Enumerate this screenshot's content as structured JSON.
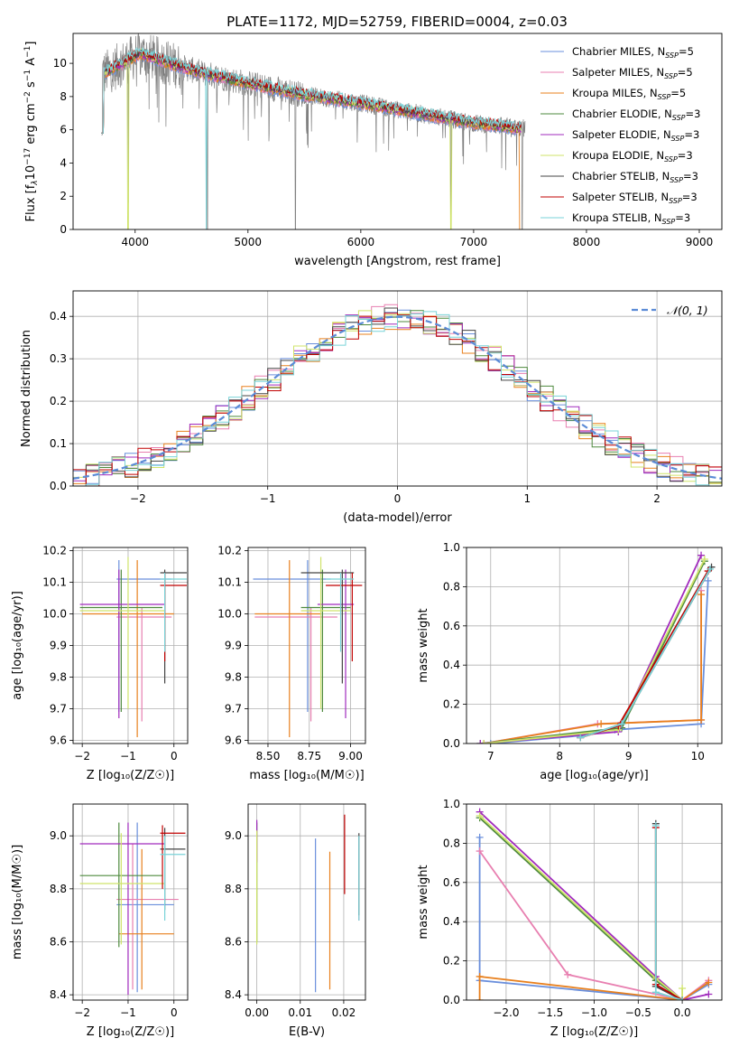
{
  "figure": {
    "title": "PLATE=1172, MJD=52759, FIBERID=0004, z=0.03"
  },
  "models": [
    {
      "label": "Chabrier MILES, N",
      "sub": "SSP",
      "tail": "=5",
      "color": "#6a8fdc"
    },
    {
      "label": "Salpeter MILES, N",
      "sub": "SSP",
      "tail": "=5",
      "color": "#e87fb0"
    },
    {
      "label": "Kroupa MILES, N",
      "sub": "SSP",
      "tail": "=5",
      "color": "#e8801e"
    },
    {
      "label": "Chabrier ELODIE, N",
      "sub": "SSP",
      "tail": "=3",
      "color": "#4e8a3e"
    },
    {
      "label": "Salpeter ELODIE, N",
      "sub": "SSP",
      "tail": "=3",
      "color": "#a12bbd"
    },
    {
      "label": "Kroupa ELODIE, N",
      "sub": "SSP",
      "tail": "=3",
      "color": "#cfe36a"
    },
    {
      "label": "Chabrier STELIB, N",
      "sub": "SSP",
      "tail": "=3",
      "color": "#444444"
    },
    {
      "label": "Salpeter STELIB, N",
      "sub": "SSP",
      "tail": "=3",
      "color": "#c00000"
    },
    {
      "label": "Kroupa STELIB, N",
      "sub": "SSP",
      "tail": "=3",
      "color": "#79d3d8"
    }
  ],
  "chart_data": [
    {
      "id": "spectrum",
      "type": "line",
      "title": "PLATE=1172, MJD=52759, FIBERID=0004, z=0.03",
      "xlabel": "wavelength [Angstrom, rest frame]",
      "ylabel_parts": [
        "Flux [f",
        "λ",
        "10",
        "−17",
        " erg cm",
        "−2",
        " s",
        "−1",
        " A",
        "−1",
        "]"
      ],
      "xlim": [
        3450,
        9200
      ],
      "ylim": [
        0,
        11.8
      ],
      "xticks": [
        "4000",
        "5000",
        "6000",
        "7000",
        "8000",
        "9000"
      ],
      "yticks": [
        "0",
        "2",
        "4",
        "6",
        "8",
        "10"
      ],
      "data_color": "#808080",
      "continuum": [
        [
          3700,
          9.3
        ],
        [
          4050,
          10.6
        ],
        [
          4300,
          10.0
        ],
        [
          4600,
          9.4
        ],
        [
          5000,
          8.8
        ],
        [
          5500,
          8.1
        ],
        [
          6000,
          7.6
        ],
        [
          6500,
          7.0
        ],
        [
          7000,
          6.4
        ],
        [
          7400,
          6.1
        ]
      ],
      "data_range": [
        3700,
        7460
      ],
      "model_range": [
        3700,
        7420
      ],
      "features": [
        {
          "x": 3940,
          "y": 1.6
        },
        {
          "x": 4640,
          "y": 0
        },
        {
          "x": 5420,
          "y": 0
        },
        {
          "x": 6800,
          "y": 0
        },
        {
          "x": 7430,
          "y": 0
        }
      ],
      "legend": "upper right"
    },
    {
      "id": "residuals",
      "type": "histogram",
      "xlabel": "(data-model)/error",
      "ylabel": "Normed distribution",
      "xlim": [
        -2.5,
        2.5
      ],
      "ylim": [
        0,
        0.46
      ],
      "xticks": [
        "−2",
        "−1",
        "0",
        "1",
        "2"
      ],
      "yticks": [
        "0.0",
        "0.1",
        "0.2",
        "0.3",
        "0.4"
      ],
      "bins": {
        "start": -2.5,
        "width": 0.1,
        "count": 50
      },
      "reference": {
        "name": "𝒩(0, 1)",
        "color": "#5b8bd6",
        "type": "dashed"
      },
      "legend": "upper right"
    },
    {
      "id": "age_vs_Z",
      "type": "errorbar",
      "xlabel": "Z [log₁₀(Z/Z☉)]",
      "ylabel": "age  [log₁₀(age/yr)]",
      "xlim": [
        -2.2,
        0.3
      ],
      "ylim": [
        9.59,
        10.21
      ],
      "xticks": [
        "−2",
        "−1",
        "0"
      ],
      "yticks": [
        "9.6",
        "9.7",
        "9.8",
        "9.9",
        "10.0",
        "10.1",
        "10.2"
      ],
      "xtick_vals": [
        -2,
        -1,
        0
      ],
      "ytick_vals": [
        9.6,
        9.7,
        9.8,
        9.9,
        10.0,
        10.1,
        10.2
      ],
      "points": [
        {
          "m": 0,
          "x": -1.2,
          "y": 10.11,
          "xe": [
            -1.25,
            -0.05
          ],
          "ye": [
            9.69,
            10.17
          ]
        },
        {
          "m": 1,
          "x": -0.7,
          "y": 9.99,
          "xe": [
            -1.25,
            -0.05
          ],
          "ye": [
            9.66,
            10.02
          ]
        },
        {
          "m": 2,
          "x": -0.8,
          "y": 10.0,
          "xe": [
            -2.0,
            0.0
          ],
          "ye": [
            9.61,
            10.17
          ]
        },
        {
          "m": 3,
          "x": -1.15,
          "y": 10.02,
          "xe": [
            -2.05,
            -0.25
          ],
          "ye": [
            9.69,
            10.14
          ]
        },
        {
          "m": 4,
          "x": -1.2,
          "y": 10.03,
          "xe": [
            -2.05,
            -0.2
          ],
          "ye": [
            9.67,
            10.14
          ]
        },
        {
          "m": 5,
          "x": -1.0,
          "y": 10.01,
          "xe": [
            -2.05,
            -0.2
          ],
          "ye": [
            9.7,
            10.18
          ]
        },
        {
          "m": 6,
          "x": -0.2,
          "y": 10.13,
          "xe": [
            -0.3,
            0.28
          ],
          "ye": [
            9.78,
            10.14
          ]
        },
        {
          "m": 7,
          "x": -0.2,
          "y": 10.09,
          "xe": [
            -0.3,
            0.28
          ],
          "ye": [
            9.85,
            10.13
          ]
        },
        {
          "m": 8,
          "x": -0.2,
          "y": 10.11,
          "xe": [
            -0.3,
            0.28
          ],
          "ye": [
            9.88,
            10.13
          ]
        }
      ]
    },
    {
      "id": "age_vs_mass",
      "type": "errorbar",
      "xlabel": "mass [log₁₀(M/M☉)]",
      "ylabel": "",
      "xlim": [
        8.38,
        9.09
      ],
      "ylim": [
        9.59,
        10.21
      ],
      "xticks": [
        "8.50",
        "8.75",
        "9.00"
      ],
      "yticks": [
        "9.6",
        "9.7",
        "9.8",
        "9.9",
        "10.0",
        "10.1",
        "10.2"
      ],
      "xtick_vals": [
        8.5,
        8.75,
        9.0
      ],
      "ytick_vals": [
        9.6,
        9.7,
        9.8,
        9.9,
        10.0,
        10.1,
        10.2
      ],
      "points": [
        {
          "m": 0,
          "x": 8.74,
          "y": 10.11,
          "xe": [
            8.41,
            8.88
          ],
          "ye": [
            9.69,
            10.17
          ]
        },
        {
          "m": 1,
          "x": 8.76,
          "y": 9.99,
          "xe": [
            8.42,
            8.92
          ],
          "ye": [
            9.66,
            10.02
          ]
        },
        {
          "m": 2,
          "x": 8.63,
          "y": 10.0,
          "xe": [
            8.42,
            8.82
          ],
          "ye": [
            9.61,
            10.17
          ]
        },
        {
          "m": 3,
          "x": 8.83,
          "y": 10.02,
          "xe": [
            8.7,
            9.0
          ],
          "ye": [
            9.69,
            10.14
          ]
        },
        {
          "m": 4,
          "x": 8.97,
          "y": 10.03,
          "xe": [
            8.8,
            9.02
          ],
          "ye": [
            9.67,
            10.14
          ]
        },
        {
          "m": 5,
          "x": 8.82,
          "y": 10.01,
          "xe": [
            8.7,
            9.0
          ],
          "ye": [
            9.7,
            10.18
          ]
        },
        {
          "m": 6,
          "x": 8.95,
          "y": 10.13,
          "xe": [
            8.7,
            9.02
          ],
          "ye": [
            9.78,
            10.14
          ]
        },
        {
          "m": 7,
          "x": 9.01,
          "y": 10.09,
          "xe": [
            8.85,
            9.07
          ],
          "ye": [
            9.85,
            10.13
          ]
        },
        {
          "m": 8,
          "x": 8.94,
          "y": 10.11,
          "xe": [
            8.85,
            9.02
          ],
          "ye": [
            9.88,
            10.13
          ]
        }
      ]
    },
    {
      "id": "weight_vs_age",
      "type": "line",
      "xlabel": "age  [log₁₀(age/yr)]",
      "ylabel": "mass weight",
      "xlim": [
        6.65,
        10.35
      ],
      "ylim": [
        0,
        1.0
      ],
      "xticks": [
        "7",
        "8",
        "9",
        "10"
      ],
      "yticks": [
        "0.0",
        "0.2",
        "0.4",
        "0.6",
        "0.8",
        "1.0"
      ],
      "xtick_vals": [
        7,
        8,
        9,
        10
      ],
      "ytick_vals": [
        0,
        0.2,
        0.4,
        0.6,
        0.8,
        1.0
      ],
      "series": [
        {
          "m": 0,
          "x": [
            7.0,
            8.3,
            8.8,
            10.05,
            10.15
          ],
          "y": [
            0.0,
            0.04,
            0.07,
            0.1,
            0.83
          ]
        },
        {
          "m": 1,
          "x": [
            6.9,
            8.55,
            10.05,
            10.05
          ],
          "y": [
            0.0,
            0.1,
            0.12,
            0.78
          ]
        },
        {
          "m": 2,
          "x": [
            6.9,
            8.6,
            10.05,
            10.05
          ],
          "y": [
            0.0,
            0.1,
            0.12,
            0.76
          ]
        },
        {
          "m": 3,
          "x": [
            6.85,
            8.9,
            10.1
          ],
          "y": [
            0.0,
            0.08,
            0.93
          ]
        },
        {
          "m": 4,
          "x": [
            6.85,
            8.85,
            10.05
          ],
          "y": [
            0.0,
            0.06,
            0.96
          ]
        },
        {
          "m": 5,
          "x": [
            6.9,
            8.85,
            10.1
          ],
          "y": [
            0.0,
            0.07,
            0.94
          ]
        },
        {
          "m": 6,
          "x": [
            8.3,
            8.9,
            10.2
          ],
          "y": [
            0.03,
            0.1,
            0.9
          ]
        },
        {
          "m": 7,
          "x": [
            8.3,
            8.85,
            10.15
          ],
          "y": [
            0.03,
            0.09,
            0.88
          ]
        },
        {
          "m": 8,
          "x": [
            8.3,
            8.9,
            10.18
          ],
          "y": [
            0.03,
            0.1,
            0.89
          ]
        }
      ]
    },
    {
      "id": "mass_vs_Z",
      "type": "errorbar",
      "xlabel": "Z [log₁₀(Z/Z☉)]",
      "ylabel": "mass [log₁₀(M/M☉)]",
      "xlim": [
        -2.2,
        0.3
      ],
      "ylim": [
        8.38,
        9.12
      ],
      "xticks": [
        "−2",
        "−1",
        "0"
      ],
      "yticks": [
        "8.4",
        "8.6",
        "8.8",
        "9.0"
      ],
      "xtick_vals": [
        -2,
        -1,
        0
      ],
      "ytick_vals": [
        8.4,
        8.6,
        8.8,
        9.0
      ],
      "points": [
        {
          "m": 0,
          "x": -0.8,
          "y": 8.74,
          "xe": [
            -1.25,
            0.0
          ],
          "ye": [
            8.41,
            9.05
          ]
        },
        {
          "m": 1,
          "x": -0.9,
          "y": 8.76,
          "xe": [
            -1.25,
            0.1
          ],
          "ye": [
            8.42,
            8.97
          ]
        },
        {
          "m": 2,
          "x": -0.7,
          "y": 8.63,
          "xe": [
            -1.2,
            0.0
          ],
          "ye": [
            8.42,
            8.95
          ]
        },
        {
          "m": 3,
          "x": -1.2,
          "y": 8.85,
          "xe": [
            -2.05,
            -0.25
          ],
          "ye": [
            8.58,
            9.05
          ]
        },
        {
          "m": 4,
          "x": -1.0,
          "y": 8.97,
          "xe": [
            -2.05,
            -0.2
          ],
          "ye": [
            8.4,
            9.05
          ]
        },
        {
          "m": 5,
          "x": -1.15,
          "y": 8.82,
          "xe": [
            -2.05,
            -0.2
          ],
          "ye": [
            8.59,
            9.01
          ]
        },
        {
          "m": 6,
          "x": -0.2,
          "y": 8.95,
          "xe": [
            -0.3,
            0.25
          ],
          "ye": [
            8.72,
            9.03
          ]
        },
        {
          "m": 7,
          "x": -0.25,
          "y": 9.01,
          "xe": [
            -0.3,
            0.25
          ],
          "ye": [
            8.8,
            9.04
          ]
        },
        {
          "m": 8,
          "x": -0.2,
          "y": 8.93,
          "xe": [
            -0.3,
            0.25
          ],
          "ye": [
            8.68,
            9.0
          ]
        }
      ]
    },
    {
      "id": "mass_vs_ebv",
      "type": "errorbar",
      "xlabel": "E(B-V)",
      "ylabel": "",
      "xlim": [
        -0.002,
        0.025
      ],
      "ylim": [
        8.38,
        9.12
      ],
      "xticks": [
        "0.00",
        "0.01",
        "0.02"
      ],
      "yticks": [
        "8.4",
        "8.6",
        "8.8",
        "9.0"
      ],
      "xtick_vals": [
        0.0,
        0.01,
        0.02
      ],
      "ytick_vals": [
        8.4,
        8.6,
        8.8,
        9.0
      ],
      "points": [
        {
          "m": 0,
          "x": 0.0135,
          "y": 8.74,
          "xe": [
            0.0135,
            0.0135
          ],
          "ye": [
            8.41,
            8.99
          ]
        },
        {
          "m": 1,
          "x": 0.0235,
          "y": 8.76,
          "xe": [
            0.0235,
            0.0235
          ],
          "ye": [
            8.68,
            9.0
          ]
        },
        {
          "m": 2,
          "x": 0.0168,
          "y": 8.63,
          "xe": [
            0.0168,
            0.0168
          ],
          "ye": [
            8.42,
            8.94
          ]
        },
        {
          "m": 3,
          "x": 0.0,
          "y": 8.85,
          "xe": [
            0.0,
            0.0
          ],
          "ye": [
            8.6,
            9.05
          ]
        },
        {
          "m": 4,
          "x": 0.0,
          "y": 8.97,
          "xe": [
            0.0,
            0.0
          ],
          "ye": [
            8.9,
            9.06
          ]
        },
        {
          "m": 5,
          "x": 0.0,
          "y": 8.82,
          "xe": [
            0.0,
            0.0
          ],
          "ye": [
            8.59,
            9.02
          ]
        },
        {
          "m": 6,
          "x": 0.0235,
          "y": 8.95,
          "xe": [
            0.0235,
            0.0235
          ],
          "ye": [
            8.7,
            9.01
          ]
        },
        {
          "m": 7,
          "x": 0.0202,
          "y": 9.0,
          "xe": [
            0.0202,
            0.0202
          ],
          "ye": [
            8.78,
            9.08
          ]
        },
        {
          "m": 8,
          "x": 0.0235,
          "y": 8.92,
          "xe": [
            0.0235,
            0.0235
          ],
          "ye": [
            8.68,
            9.0
          ]
        }
      ]
    },
    {
      "id": "weight_vs_Z",
      "type": "line",
      "xlabel": "Z [log₁₀(Z/Z☉)]",
      "ylabel": "mass weight",
      "xlim": [
        -2.45,
        0.45
      ],
      "ylim": [
        0,
        1.0
      ],
      "xticks": [
        "−2.0",
        "−1.5",
        "−1.0",
        "−0.5",
        "0.0"
      ],
      "yticks": [
        "0.0",
        "0.2",
        "0.4",
        "0.6",
        "0.8",
        "1.0"
      ],
      "xtick_vals": [
        -2.0,
        -1.5,
        -1.0,
        -0.5,
        0.0
      ],
      "ytick_vals": [
        0,
        0.2,
        0.4,
        0.6,
        0.8,
        1.0
      ],
      "series": [
        {
          "m": 0,
          "x": [
            -2.3,
            -2.3,
            0.0,
            0.3
          ],
          "y": [
            0.83,
            0.1,
            0.0,
            0.08
          ]
        },
        {
          "m": 1,
          "x": [
            -2.3,
            -1.3,
            0.0,
            0.3
          ],
          "y": [
            0.76,
            0.13,
            0.0,
            0.1
          ]
        },
        {
          "m": 2,
          "x": [
            -2.3,
            -2.3,
            0.0,
            0.3
          ],
          "y": [
            0.0,
            0.12,
            0.0,
            0.09
          ]
        },
        {
          "m": 3,
          "x": [
            -2.3,
            -0.3,
            0.0
          ],
          "y": [
            0.93,
            0.1,
            0.0
          ]
        },
        {
          "m": 4,
          "x": [
            -2.3,
            -0.3,
            0.0,
            0.3
          ],
          "y": [
            0.96,
            0.12,
            0.0,
            0.03
          ]
        },
        {
          "m": 5,
          "x": [
            -2.3,
            -0.3,
            0.0,
            0.0
          ],
          "y": [
            0.94,
            0.11,
            0.0,
            0.06
          ]
        },
        {
          "m": 6,
          "x": [
            -0.3,
            -0.3,
            0.0
          ],
          "y": [
            0.9,
            0.07,
            0.0
          ]
        },
        {
          "m": 7,
          "x": [
            -0.3,
            -0.3,
            0.0
          ],
          "y": [
            0.88,
            0.08,
            0.0
          ]
        },
        {
          "m": 8,
          "x": [
            -0.3,
            -0.3,
            0.0
          ],
          "y": [
            0.89,
            0.04,
            0.0
          ]
        }
      ]
    }
  ]
}
